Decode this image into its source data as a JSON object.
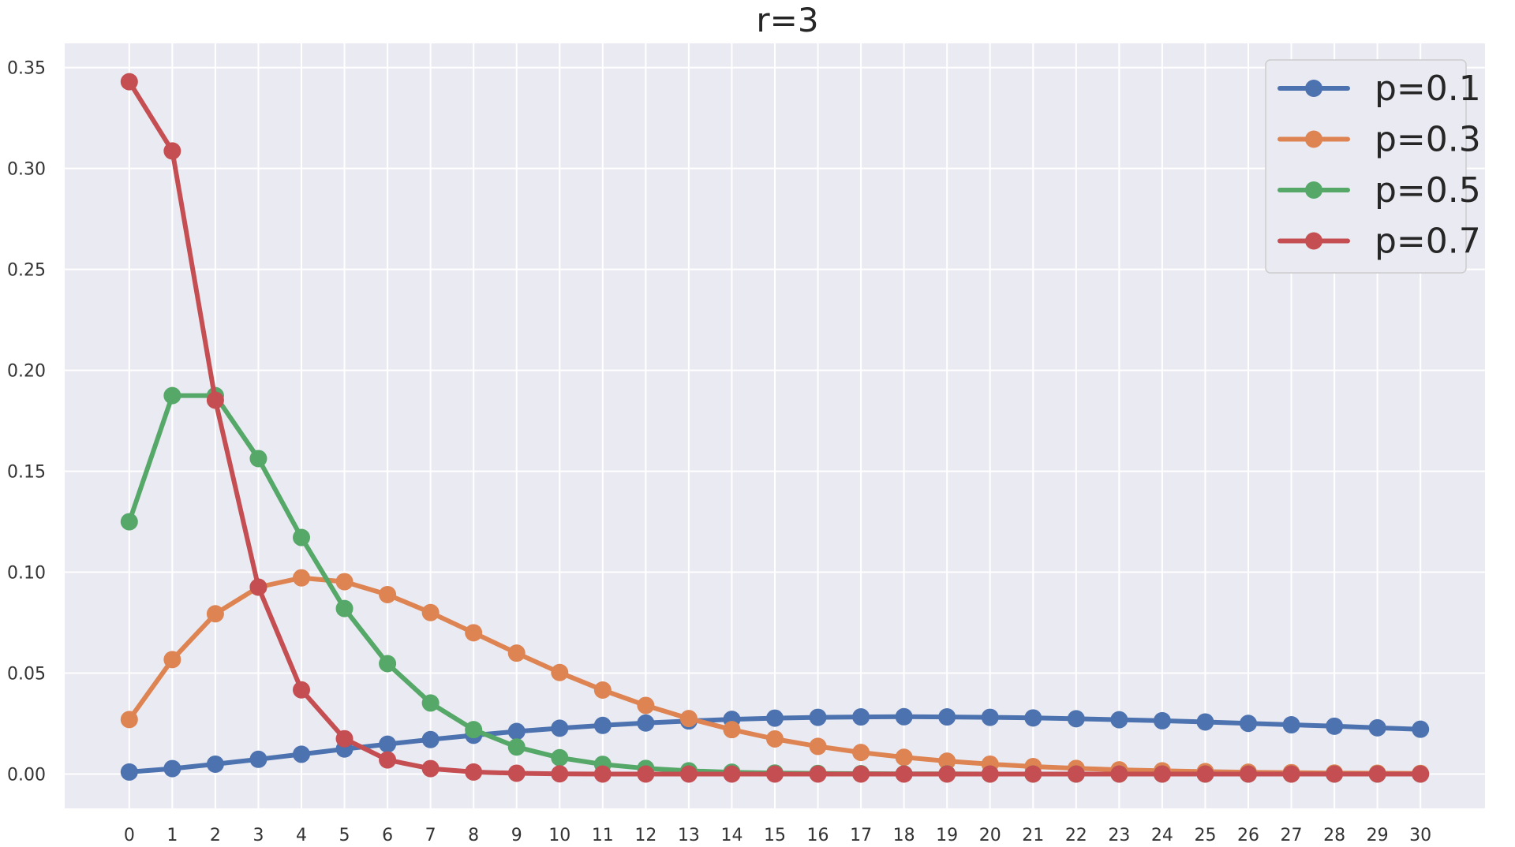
{
  "chart_data": {
    "type": "line",
    "title": "r=3",
    "xlabel": "",
    "ylabel": "",
    "x": [
      0,
      1,
      2,
      3,
      4,
      5,
      6,
      7,
      8,
      9,
      10,
      11,
      12,
      13,
      14,
      15,
      16,
      17,
      18,
      19,
      20,
      21,
      22,
      23,
      24,
      25,
      26,
      27,
      28,
      29,
      30
    ],
    "xlim": [
      -1.5,
      31.5
    ],
    "ylim": [
      -0.017,
      0.362
    ],
    "yticks": [
      0.0,
      0.05,
      0.1,
      0.15,
      0.2,
      0.25,
      0.3,
      0.35
    ],
    "ytick_labels": [
      "0.00",
      "0.05",
      "0.10",
      "0.15",
      "0.20",
      "0.25",
      "0.30",
      "0.35"
    ],
    "xtick_labels": [
      "0",
      "1",
      "2",
      "3",
      "4",
      "5",
      "6",
      "7",
      "8",
      "9",
      "10",
      "11",
      "12",
      "13",
      "14",
      "15",
      "16",
      "17",
      "18",
      "19",
      "20",
      "21",
      "22",
      "23",
      "24",
      "25",
      "26",
      "27",
      "28",
      "29",
      "30"
    ],
    "grid": true,
    "legend_position": "top-right",
    "series": [
      {
        "name": "p=0.1",
        "color": "#4c72b0",
        "values": [
          0.001,
          0.0027,
          0.0049,
          0.0073,
          0.0098,
          0.0124,
          0.0148,
          0.0171,
          0.0192,
          0.0211,
          0.0227,
          0.0241,
          0.0253,
          0.0263,
          0.0271,
          0.0277,
          0.0281,
          0.0283,
          0.0284,
          0.0283,
          0.0281,
          0.0278,
          0.0274,
          0.0269,
          0.0264,
          0.0258,
          0.0251,
          0.0244,
          0.0237,
          0.0229,
          0.0222
        ]
      },
      {
        "name": "p=0.3",
        "color": "#dd8452",
        "values": [
          0.027,
          0.0567,
          0.0794,
          0.0926,
          0.0972,
          0.0953,
          0.0889,
          0.08,
          0.07,
          0.0599,
          0.0503,
          0.0416,
          0.034,
          0.0275,
          0.022,
          0.0174,
          0.0137,
          0.0107,
          0.0083,
          0.0064,
          0.0049,
          0.0037,
          0.0028,
          0.0021,
          0.0016,
          0.0012,
          0.0009,
          0.0007,
          0.0005,
          0.0004,
          0.0003
        ]
      },
      {
        "name": "p=0.5",
        "color": "#55a868",
        "values": [
          0.125,
          0.1875,
          0.1875,
          0.1563,
          0.1172,
          0.082,
          0.0547,
          0.0352,
          0.022,
          0.0134,
          0.0081,
          0.0048,
          0.0028,
          0.0016,
          0.0009,
          0.0005,
          0.0003,
          0.0002,
          0.0001,
          0.0001,
          0,
          0,
          0,
          0,
          0,
          0,
          0,
          0,
          0,
          0,
          0
        ]
      },
      {
        "name": "p=0.7",
        "color": "#c44e52",
        "values": [
          0.343,
          0.3087,
          0.1852,
          0.0926,
          0.0417,
          0.0175,
          0.007,
          0.0027,
          0.001,
          0.0004,
          0.0001,
          0,
          0,
          0,
          0,
          0,
          0,
          0,
          0,
          0,
          0,
          0,
          0,
          0,
          0,
          0,
          0,
          0,
          0,
          0,
          0
        ]
      }
    ]
  }
}
